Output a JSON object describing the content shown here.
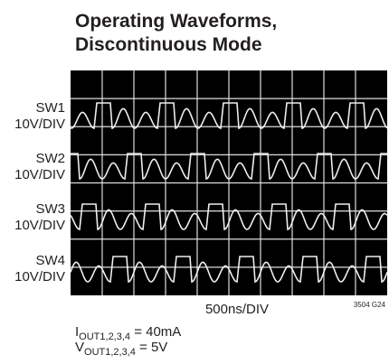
{
  "header": {
    "title_lines": [
      "Operating Waveforms,",
      "Discontinuous Mode"
    ]
  },
  "channels": [
    {
      "name": "SW1",
      "scale": "10V/DIV"
    },
    {
      "name": "SW2",
      "scale": "10V/DIV"
    },
    {
      "name": "SW3",
      "scale": "10V/DIV"
    },
    {
      "name": "SW4",
      "scale": "10V/DIV"
    }
  ],
  "x_axis_label": "500ns/DIV",
  "figure_id": "3504 G24",
  "conditions": [
    {
      "symbol": "I",
      "subscript": "OUT1,2,3,4",
      "value": " = 40mA"
    },
    {
      "symbol": "V",
      "subscript": "OUT1,2,3,4",
      "value": " = 5V"
    }
  ]
}
